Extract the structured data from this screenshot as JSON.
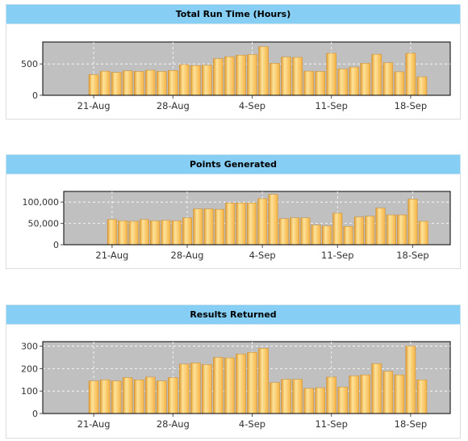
{
  "chart_data": [
    {
      "type": "bar",
      "title": "Total Run Time (Hours)",
      "x_tick_labels": [
        "21-Aug",
        "28-Aug",
        "4-Sep",
        "11-Sep",
        "18-Sep"
      ],
      "y_ticks": [
        0,
        500
      ],
      "y_tick_labels": [
        "0",
        "500"
      ],
      "ylim": [
        0,
        850
      ],
      "grid": true,
      "colors": {
        "bar": "#f5b244",
        "bar_highlight": "#fde39a",
        "plot_bg": "#c0c0c0",
        "header": "#87cef5"
      },
      "values": [
        330,
        385,
        365,
        390,
        380,
        400,
        380,
        395,
        490,
        475,
        480,
        585,
        615,
        640,
        650,
        775,
        510,
        610,
        605,
        385,
        380,
        670,
        420,
        450,
        510,
        655,
        520,
        375,
        670,
        295
      ]
    },
    {
      "type": "bar",
      "title": "Points Generated",
      "x_tick_labels": [
        "21-Aug",
        "28-Aug",
        "4-Sep",
        "11-Sep",
        "18-Sep"
      ],
      "y_ticks": [
        0,
        50000,
        100000
      ],
      "y_tick_labels": [
        "0",
        "50,000",
        "100,000"
      ],
      "ylim": [
        0,
        125000
      ],
      "grid": true,
      "colors": {
        "bar": "#f5b244",
        "bar_highlight": "#fde39a",
        "plot_bg": "#c0c0c0",
        "header": "#87cef5"
      },
      "values": [
        59000,
        56000,
        55000,
        59000,
        56000,
        57000,
        56000,
        63000,
        84000,
        84000,
        83000,
        98000,
        98000,
        98000,
        108000,
        118000,
        61000,
        63000,
        63000,
        46000,
        44000,
        74000,
        43000,
        65000,
        67000,
        86000,
        70000,
        70000,
        107000,
        55000
      ]
    },
    {
      "type": "bar",
      "title": "Results Returned",
      "x_tick_labels": [
        "21-Aug",
        "28-Aug",
        "4-Sep",
        "11-Sep",
        "18-Sep"
      ],
      "y_ticks": [
        0,
        100,
        200,
        300
      ],
      "y_tick_labels": [
        "0",
        "100",
        "200",
        "300"
      ],
      "ylim": [
        0,
        320
      ],
      "grid": true,
      "colors": {
        "bar": "#f5b244",
        "bar_highlight": "#fde39a",
        "plot_bg": "#c0c0c0",
        "header": "#87cef5"
      },
      "values": [
        145,
        150,
        145,
        160,
        150,
        162,
        145,
        160,
        220,
        225,
        218,
        250,
        248,
        265,
        272,
        290,
        138,
        152,
        152,
        112,
        115,
        162,
        118,
        168,
        172,
        222,
        188,
        172,
        300,
        150
      ]
    }
  ]
}
